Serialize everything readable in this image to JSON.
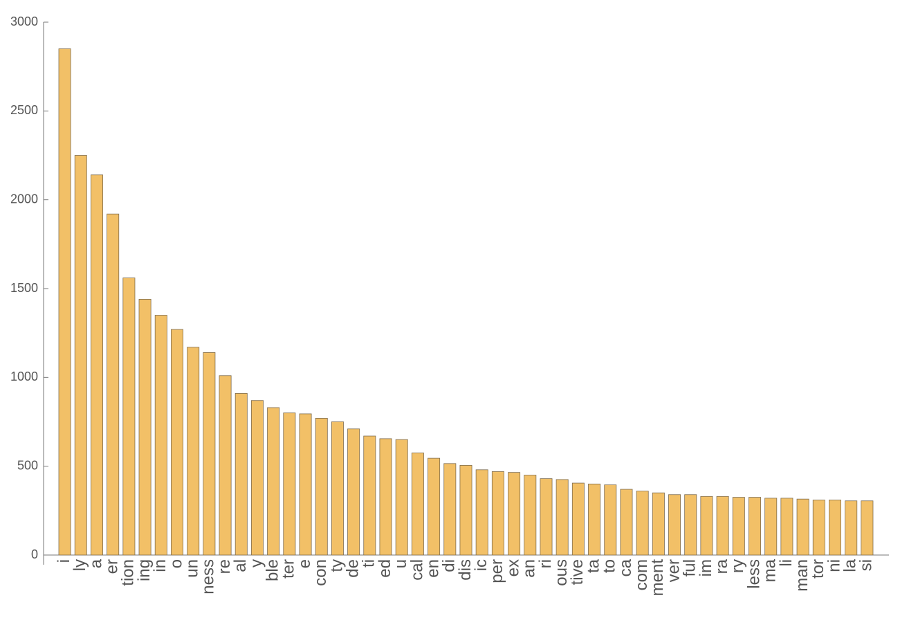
{
  "chart_data": {
    "type": "bar",
    "categories": [
      "i",
      "ly",
      "a",
      "er",
      "tion",
      "ing",
      "in",
      "o",
      "un",
      "ness",
      "re",
      "al",
      "y",
      "ble",
      "ter",
      "e",
      "con",
      "ty",
      "de",
      "ti",
      "ed",
      "u",
      "cal",
      "en",
      "di",
      "dis",
      "ic",
      "per",
      "ex",
      "an",
      "ri",
      "ous",
      "tive",
      "ta",
      "to",
      "ca",
      "com",
      "ment",
      "ver",
      "ful",
      "im",
      "ra",
      "ry",
      "less",
      "ma",
      "li",
      "man",
      "tor",
      "ni",
      "la",
      "si"
    ],
    "values": [
      2850,
      2250,
      2140,
      1920,
      1560,
      1440,
      1350,
      1270,
      1170,
      1140,
      1010,
      910,
      870,
      830,
      800,
      795,
      770,
      750,
      710,
      670,
      655,
      650,
      575,
      545,
      515,
      505,
      480,
      470,
      465,
      450,
      430,
      425,
      405,
      400,
      395,
      370,
      360,
      350,
      340,
      340,
      330,
      330,
      325,
      325,
      320,
      320,
      315,
      310,
      310,
      305,
      305
    ],
    "color": "#f2c067",
    "ylim": [
      0,
      3000
    ],
    "yticks": [
      0,
      500,
      1000,
      1500,
      2000,
      2500,
      3000
    ],
    "grid": false
  }
}
